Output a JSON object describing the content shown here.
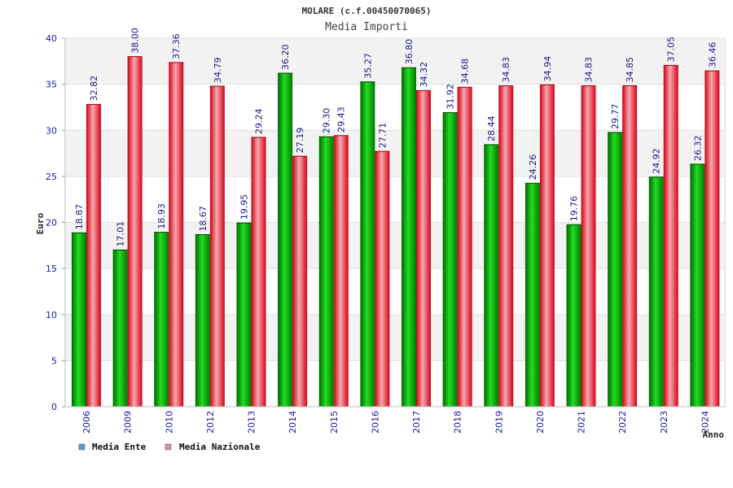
{
  "chart_data": {
    "type": "bar",
    "title": "MOLARE (c.f.00450070065)",
    "subtitle": "Media Importi",
    "xlabel": "Anno",
    "ylabel": "Euro",
    "ylim": [
      0,
      40
    ],
    "yticks": [
      0,
      5,
      10,
      15,
      20,
      25,
      30,
      35,
      40
    ],
    "grid": true,
    "legend_position": "bottom-left",
    "categories": [
      "2006",
      "2009",
      "2010",
      "2012",
      "2013",
      "2014",
      "2015",
      "2016",
      "2017",
      "2018",
      "2019",
      "2020",
      "2021",
      "2022",
      "2023",
      "2024"
    ],
    "series": [
      {
        "name": "Media Ente",
        "color": "#00aa00",
        "legend_color": "#5b9bd5",
        "values": [
          18.87,
          17.01,
          18.93,
          18.67,
          19.95,
          36.2,
          29.3,
          35.27,
          36.8,
          31.92,
          28.44,
          24.26,
          19.76,
          29.77,
          24.92,
          26.32
        ]
      },
      {
        "name": "Media Nazionale",
        "color": "#e8202a",
        "legend_color": "#d98cb3",
        "values": [
          32.82,
          38.0,
          37.36,
          34.79,
          29.24,
          27.19,
          29.43,
          27.71,
          34.32,
          34.68,
          34.83,
          34.94,
          34.83,
          34.85,
          37.05,
          36.46
        ]
      }
    ]
  }
}
